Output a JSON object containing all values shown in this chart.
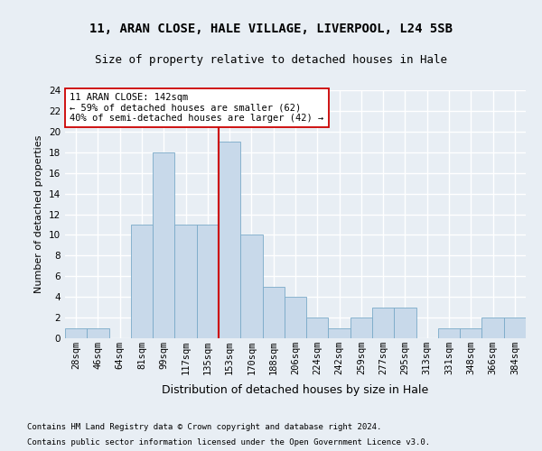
{
  "title1": "11, ARAN CLOSE, HALE VILLAGE, LIVERPOOL, L24 5SB",
  "title2": "Size of property relative to detached houses in Hale",
  "xlabel": "Distribution of detached houses by size in Hale",
  "ylabel": "Number of detached properties",
  "categories": [
    "28sqm",
    "46sqm",
    "64sqm",
    "81sqm",
    "99sqm",
    "117sqm",
    "135sqm",
    "153sqm",
    "170sqm",
    "188sqm",
    "206sqm",
    "224sqm",
    "242sqm",
    "259sqm",
    "277sqm",
    "295sqm",
    "313sqm",
    "331sqm",
    "348sqm",
    "366sqm",
    "384sqm"
  ],
  "values": [
    1,
    1,
    0,
    11,
    18,
    11,
    11,
    19,
    10,
    5,
    4,
    2,
    1,
    2,
    3,
    3,
    0,
    1,
    1,
    2,
    2
  ],
  "bar_color": "#c8d9ea",
  "bar_edge_color": "#7aaac8",
  "ylim": [
    0,
    24
  ],
  "yticks": [
    0,
    2,
    4,
    6,
    8,
    10,
    12,
    14,
    16,
    18,
    20,
    22,
    24
  ],
  "vline_index": 7,
  "vline_color": "#cc0000",
  "annotation_title": "11 ARAN CLOSE: 142sqm",
  "annotation_line1": "← 59% of detached houses are smaller (62)",
  "annotation_line2": "40% of semi-detached houses are larger (42) →",
  "annotation_box_color": "#ffffff",
  "annotation_box_edge": "#cc0000",
  "footer1": "Contains HM Land Registry data © Crown copyright and database right 2024.",
  "footer2": "Contains public sector information licensed under the Open Government Licence v3.0.",
  "background_color": "#e8eef4",
  "plot_background": "#e8eef4",
  "grid_color": "#ffffff",
  "title1_fontsize": 10,
  "title2_fontsize": 9,
  "ylabel_fontsize": 8,
  "xlabel_fontsize": 9,
  "tick_fontsize": 7.5,
  "footer_fontsize": 6.5
}
